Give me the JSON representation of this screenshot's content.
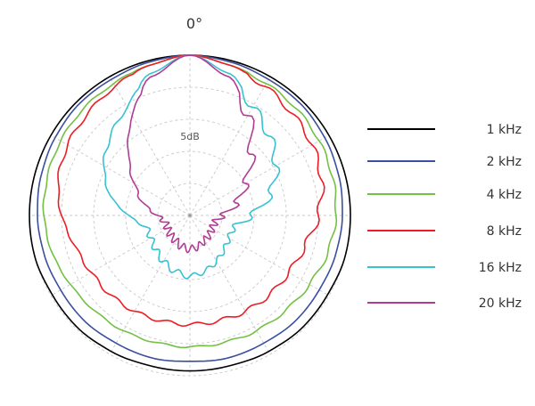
{
  "chart_data": {
    "type": "polar",
    "angle_label": "0°",
    "ring_label": "5dB",
    "ring_count": 5,
    "spoke_step_deg": 30,
    "grid": true,
    "legend_position": "right",
    "angles_deg": [
      0,
      15,
      30,
      45,
      60,
      75,
      90,
      105,
      120,
      135,
      150,
      165,
      180
    ],
    "series": [
      {
        "name": "1 kHz",
        "color": "#000000",
        "values": [
          1.0,
          1.0,
          1.0,
          1.0,
          1.0,
          1.0,
          1.0,
          1.0,
          0.99,
          0.99,
          0.98,
          0.97,
          0.97
        ]
      },
      {
        "name": "2 kHz",
        "color": "#3a4fa0",
        "values": [
          1.0,
          0.99,
          0.98,
          0.98,
          0.97,
          0.96,
          0.95,
          0.94,
          0.93,
          0.93,
          0.92,
          0.92,
          0.91
        ]
      },
      {
        "name": "4 kHz",
        "color": "#74c043",
        "values": [
          1.0,
          0.97,
          0.95,
          0.94,
          0.93,
          0.92,
          0.91,
          0.89,
          0.86,
          0.84,
          0.83,
          0.82,
          0.82
        ]
      },
      {
        "name": "8 kHz",
        "color": "#ee1c24",
        "values": [
          1.0,
          0.97,
          0.93,
          0.9,
          0.88,
          0.85,
          0.8,
          0.74,
          0.71,
          0.7,
          0.69,
          0.68,
          0.68
        ]
      },
      {
        "name": "16 kHz",
        "color": "#37c2d4",
        "values": [
          1.0,
          0.92,
          0.78,
          0.7,
          0.62,
          0.52,
          0.38,
          0.28,
          0.28,
          0.3,
          0.33,
          0.36,
          0.38
        ]
      },
      {
        "name": "20 kHz",
        "color": "#b03c94",
        "values": [
          1.0,
          0.9,
          0.72,
          0.54,
          0.4,
          0.3,
          0.2,
          0.16,
          0.16,
          0.17,
          0.18,
          0.2,
          0.21
        ]
      }
    ]
  }
}
